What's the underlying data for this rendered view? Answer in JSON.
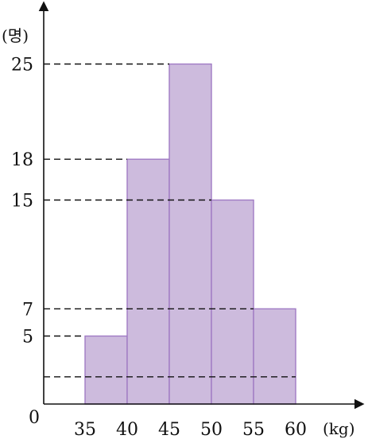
{
  "chart_data": {
    "type": "bar",
    "subtype": "histogram",
    "bins": [
      [
        35,
        40
      ],
      [
        40,
        45
      ],
      [
        45,
        50
      ],
      [
        50,
        55
      ],
      [
        55,
        60
      ]
    ],
    "values": [
      5,
      18,
      25,
      15,
      7
    ],
    "x_ticks": [
      "35",
      "40",
      "45",
      "50",
      "55",
      "60"
    ],
    "y_ticks": [
      "5",
      "7",
      "15",
      "18",
      "25"
    ],
    "origin_label": "0",
    "x_unit": "(kg)",
    "y_unit": "(명)",
    "dashed_guides": [
      25,
      18,
      15,
      7,
      5,
      2
    ],
    "xlim": [
      30,
      65
    ],
    "ylim": [
      0,
      29
    ],
    "grid": false,
    "colors": {
      "bar_fill": "#cdbbdd",
      "bar_stroke": "#a07bc4",
      "axis": "#111111"
    }
  }
}
